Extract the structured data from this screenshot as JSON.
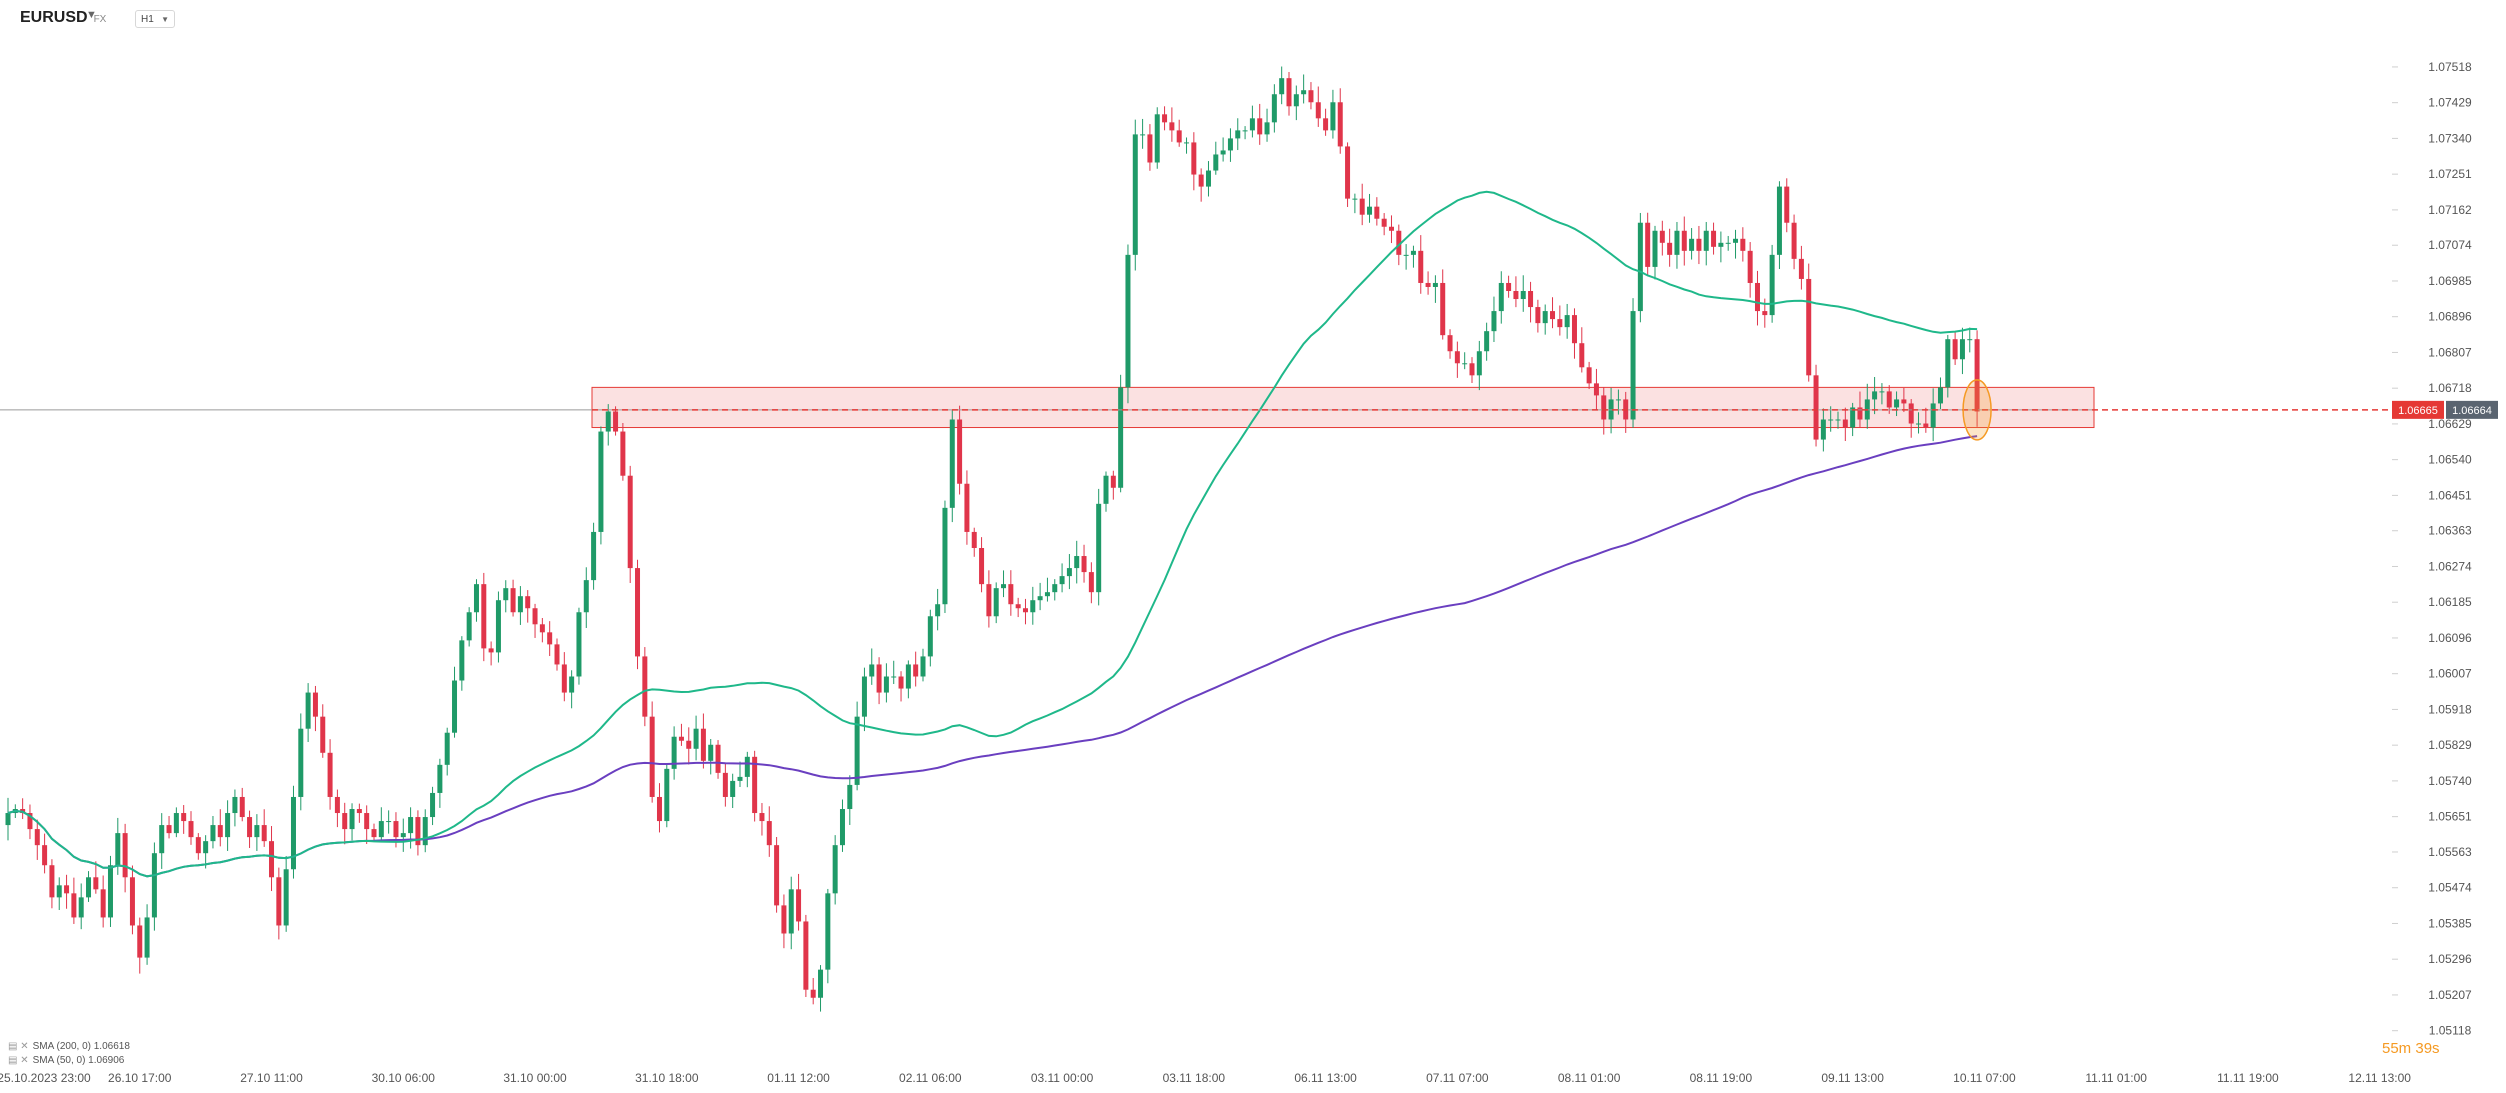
{
  "header": {
    "symbol": "EURUSD",
    "market": "FX",
    "timeframe": "H1"
  },
  "indicators": [
    {
      "label": "SMA (200, 0) 1.06618",
      "color": "#6a3fc0"
    },
    {
      "label": "SMA (50, 0) 1.06906",
      "color": "#1fb88a"
    }
  ],
  "price_labels": {
    "bid": "1.06665",
    "current": "1.06664",
    "bid_color": "#e53935",
    "current_color": "#5a6470"
  },
  "timer": "55m 39s",
  "chart_data": {
    "type": "candlestick",
    "price_range": [
      1.0504,
      1.076
    ],
    "y_ticks": [
      "1.07518",
      "1.07429",
      "1.07340",
      "1.07251",
      "1.07162",
      "1.07074",
      "1.06985",
      "1.06896",
      "1.06807",
      "1.06718",
      "1.06629",
      "1.06540",
      "1.06451",
      "1.06363",
      "1.06274",
      "1.06185",
      "1.06096",
      "1.06007",
      "1.05918",
      "1.05829",
      "1.05740",
      "1.05651",
      "1.05563",
      "1.05474",
      "1.05385",
      "1.05296",
      "1.05207",
      "1.05118"
    ],
    "x_ticks": [
      {
        "label": "25.10.2023 23:00",
        "i": 0
      },
      {
        "label": "26.10 17:00",
        "i": 18
      },
      {
        "label": "27.10 11:00",
        "i": 36
      },
      {
        "label": "30.10 06:00",
        "i": 54
      },
      {
        "label": "31.10 00:00",
        "i": 72
      },
      {
        "label": "31.10 18:00",
        "i": 90
      },
      {
        "label": "01.11 12:00",
        "i": 108
      },
      {
        "label": "02.11 06:00",
        "i": 126
      },
      {
        "label": "03.11 00:00",
        "i": 144
      },
      {
        "label": "03.11 18:00",
        "i": 162
      },
      {
        "label": "06.11 13:00",
        "i": 180
      },
      {
        "label": "07.11 07:00",
        "i": 198
      },
      {
        "label": "08.11 01:00",
        "i": 216
      },
      {
        "label": "08.11 19:00",
        "i": 234
      },
      {
        "label": "09.11 13:00",
        "i": 252
      },
      {
        "label": "10.11 07:00",
        "i": 270
      },
      {
        "label": "11.11 01:00",
        "i": 288
      },
      {
        "label": "11.11 19:00",
        "i": 306
      },
      {
        "label": "12.11 13:00",
        "i": 324
      }
    ],
    "close": [
      1.0566,
      1.0567,
      1.0566,
      1.0562,
      1.0558,
      1.0553,
      1.0545,
      1.0548,
      1.0546,
      1.054,
      1.0545,
      1.055,
      1.0547,
      1.054,
      1.0553,
      1.0561,
      1.055,
      1.0538,
      1.053,
      1.054,
      1.0556,
      1.0563,
      1.0561,
      1.0566,
      1.0564,
      1.056,
      1.0556,
      1.0559,
      1.0563,
      1.056,
      1.0566,
      1.057,
      1.0565,
      1.056,
      1.0563,
      1.0559,
      1.055,
      1.0538,
      1.0552,
      1.057,
      1.0587,
      1.0596,
      1.059,
      1.0581,
      1.057,
      1.0566,
      1.0562,
      1.0567,
      1.0566,
      1.0562,
      1.056,
      1.0564,
      1.0564,
      1.056,
      1.0561,
      1.0565,
      1.0558,
      1.0565,
      1.0571,
      1.0578,
      1.0586,
      1.0599,
      1.0609,
      1.0616,
      1.0623,
      1.0607,
      1.0606,
      1.0619,
      1.0622,
      1.0616,
      1.062,
      1.0617,
      1.0613,
      1.0611,
      1.0608,
      1.0603,
      1.0596,
      1.06,
      1.0616,
      1.0624,
      1.0636,
      1.0661,
      1.0666,
      1.0661,
      1.065,
      1.0627,
      1.0605,
      1.059,
      1.057,
      1.0564,
      1.0577,
      1.0585,
      1.0584,
      1.0582,
      1.0587,
      1.0579,
      1.0583,
      1.0576,
      1.057,
      1.0574,
      1.0575,
      1.058,
      1.0566,
      1.0564,
      1.0558,
      1.0543,
      1.0536,
      1.0547,
      1.0539,
      1.0522,
      1.052,
      1.0527,
      1.0546,
      1.0558,
      1.0567,
      1.0573,
      1.059,
      1.06,
      1.0603,
      1.0596,
      1.06,
      1.06,
      1.0597,
      1.0603,
      1.06,
      1.0605,
      1.0615,
      1.0618,
      1.0642,
      1.0664,
      1.0648,
      1.0636,
      1.0632,
      1.0623,
      1.0615,
      1.0622,
      1.0623,
      1.0618,
      1.0617,
      1.0616,
      1.0619,
      1.062,
      1.0621,
      1.0623,
      1.0625,
      1.0627,
      1.063,
      1.0626,
      1.0621,
      1.0643,
      1.065,
      1.0647,
      1.0672,
      1.0705,
      1.0735,
      1.0735,
      1.0728,
      1.074,
      1.0738,
      1.0736,
      1.0733,
      1.0733,
      1.0725,
      1.0722,
      1.0726,
      1.073,
      1.0731,
      1.0734,
      1.0736,
      1.0736,
      1.0739,
      1.0735,
      1.0738,
      1.0745,
      1.0749,
      1.0742,
      1.0745,
      1.0746,
      1.0743,
      1.0739,
      1.0736,
      1.0743,
      1.0732,
      1.0719,
      1.0719,
      1.0715,
      1.0717,
      1.0714,
      1.0712,
      1.0711,
      1.0705,
      1.0705,
      1.0706,
      1.0698,
      1.0697,
      1.0698,
      1.0685,
      1.0681,
      1.0678,
      1.0678,
      1.0675,
      1.0681,
      1.0686,
      1.0691,
      1.0698,
      1.0696,
      1.0694,
      1.0696,
      1.0692,
      1.0688,
      1.0691,
      1.0689,
      1.0687,
      1.069,
      1.0683,
      1.0677,
      1.0673,
      1.067,
      1.0664,
      1.0669,
      1.0669,
      1.0664,
      1.0691,
      1.0713,
      1.0702,
      1.0711,
      1.0708,
      1.0705,
      1.0711,
      1.0706,
      1.0709,
      1.0706,
      1.0711,
      1.0707,
      1.0708,
      1.0708,
      1.0709,
      1.0706,
      1.0698,
      1.0691,
      1.069,
      1.0705,
      1.0722,
      1.0713,
      1.0704,
      1.0699,
      1.0675,
      1.0659,
      1.0664,
      1.0664,
      1.0664,
      1.0662,
      1.0667,
      1.0664,
      1.0669,
      1.0671,
      1.0671,
      1.0667,
      1.0669,
      1.0668,
      1.0663,
      1.0663,
      1.0662,
      1.0668,
      1.0672,
      1.0684,
      1.0679,
      1.0684,
      1.0684,
      1.0666
    ],
    "sma200_last": 1.06618,
    "sma50_last": 1.06906,
    "resistance_zone": [
      1.0662,
      1.0672
    ],
    "current_price": 1.06664
  }
}
